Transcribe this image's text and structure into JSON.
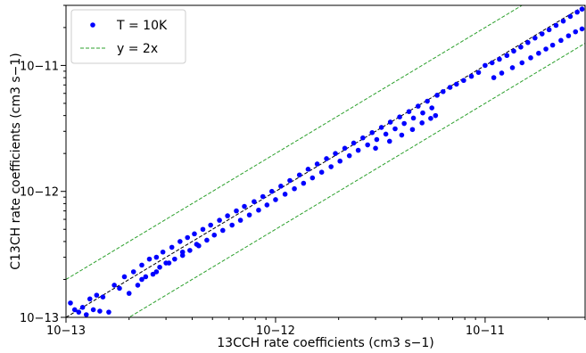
{
  "chart_data": {
    "type": "scatter",
    "xscale": "log",
    "yscale": "log",
    "xlim": [
      1e-13,
      3e-11
    ],
    "ylim": [
      1e-13,
      3e-11
    ],
    "xlabel": "13CCH rate coefficients (cm3 s−1)",
    "ylabel": "C13CH rate coefficients (cm3 s−1)",
    "xticks": [
      "10−13",
      "10−12",
      "10−11"
    ],
    "yticks": [
      "10−13",
      "10−12",
      "10−11"
    ],
    "legend_position": "upper-left",
    "series": [
      {
        "name": "T = 10K",
        "kind": "points",
        "color": "#0000ff",
        "points": [
          [
            1.05e-13,
            1.3e-13
          ],
          [
            1.1e-13,
            1.15e-13
          ],
          [
            1.15e-13,
            1.1e-13
          ],
          [
            1.2e-13,
            1.2e-13
          ],
          [
            1.25e-13,
            1.05e-13
          ],
          [
            1.3e-13,
            1.4e-13
          ],
          [
            1.35e-13,
            1.15e-13
          ],
          [
            1.4e-13,
            1.5e-13
          ],
          [
            1.45e-13,
            1.12e-13
          ],
          [
            1.5e-13,
            1.45e-13
          ],
          [
            1.6e-13,
            1.1e-13
          ],
          [
            1.7e-13,
            1.8e-13
          ],
          [
            1.8e-13,
            1.7e-13
          ],
          [
            1.9e-13,
            2.1e-13
          ],
          [
            2e-13,
            1.55e-13
          ],
          [
            2.1e-13,
            2.3e-13
          ],
          [
            2.2e-13,
            1.8e-13
          ],
          [
            2.3e-13,
            2.6e-13
          ],
          [
            2.4e-13,
            2.1e-13
          ],
          [
            2.5e-13,
            2.9e-13
          ],
          [
            2.6e-13,
            2.2e-13
          ],
          [
            2.7e-13,
            3e-13
          ],
          [
            2.8e-13,
            2.5e-13
          ],
          [
            2.9e-13,
            3.3e-13
          ],
          [
            3e-13,
            2.7e-13
          ],
          [
            3.2e-13,
            3.6e-13
          ],
          [
            3.3e-13,
            2.9e-13
          ],
          [
            3.5e-13,
            4e-13
          ],
          [
            3.6e-13,
            3.1e-13
          ],
          [
            3.8e-13,
            4.3e-13
          ],
          [
            3.9e-13,
            3.4e-13
          ],
          [
            4.1e-13,
            4.6e-13
          ],
          [
            4.3e-13,
            3.7e-13
          ],
          [
            4.5e-13,
            5e-13
          ],
          [
            4.7e-13,
            4.1e-13
          ],
          [
            4.9e-13,
            5.4e-13
          ],
          [
            5.1e-13,
            4.5e-13
          ],
          [
            5.4e-13,
            5.9e-13
          ],
          [
            5.6e-13,
            4.9e-13
          ],
          [
            5.9e-13,
            6.4e-13
          ],
          [
            6.2e-13,
            5.4e-13
          ],
          [
            6.5e-13,
            7e-13
          ],
          [
            6.8e-13,
            5.9e-13
          ],
          [
            7.1e-13,
            7.6e-13
          ],
          [
            7.5e-13,
            6.5e-13
          ],
          [
            7.9e-13,
            8.3e-13
          ],
          [
            8.3e-13,
            7.1e-13
          ],
          [
            8.7e-13,
            9.1e-13
          ],
          [
            9.1e-13,
            7.8e-13
          ],
          [
            9.6e-13,
            1e-12
          ],
          [
            1e-12,
            8.6e-13
          ],
          [
            1.06e-12,
            1.1e-12
          ],
          [
            1.11e-12,
            9.5e-13
          ],
          [
            1.17e-12,
            1.22e-12
          ],
          [
            1.23e-12,
            1.05e-12
          ],
          [
            1.3e-12,
            1.35e-12
          ],
          [
            1.36e-12,
            1.16e-12
          ],
          [
            1.43e-12,
            1.5e-12
          ],
          [
            1.5e-12,
            1.28e-12
          ],
          [
            1.58e-12,
            1.65e-12
          ],
          [
            1.66e-12,
            1.42e-12
          ],
          [
            1.75e-12,
            1.82e-12
          ],
          [
            1.84e-12,
            1.57e-12
          ],
          [
            1.93e-12,
            2e-12
          ],
          [
            2.03e-12,
            1.74e-12
          ],
          [
            2.14e-12,
            2.2e-12
          ],
          [
            2.25e-12,
            1.92e-12
          ],
          [
            2.36e-12,
            2.42e-12
          ],
          [
            2.48e-12,
            2.12e-12
          ],
          [
            2.61e-12,
            2.66e-12
          ],
          [
            2.75e-12,
            2.34e-12
          ],
          [
            2.89e-12,
            2.93e-12
          ],
          [
            3.04e-12,
            2.58e-12
          ],
          [
            3.2e-12,
            3.22e-12
          ],
          [
            3.36e-12,
            2.85e-12
          ],
          [
            3.53e-12,
            3.55e-12
          ],
          [
            3.72e-12,
            3.14e-12
          ],
          [
            3.91e-12,
            3.9e-12
          ],
          [
            4.11e-12,
            3.46e-12
          ],
          [
            4.33e-12,
            4.3e-12
          ],
          [
            4.55e-12,
            3.82e-12
          ],
          [
            4.79e-12,
            4.75e-12
          ],
          [
            5.04e-12,
            4.2e-12
          ],
          [
            5.3e-12,
            5.2e-12
          ],
          [
            5.57e-12,
            4.6e-12
          ],
          [
            5.9e-12,
            5.8e-12
          ],
          [
            6.3e-12,
            6.2e-12
          ],
          [
            6.8e-12,
            6.7e-12
          ],
          [
            7.3e-12,
            7.1e-12
          ],
          [
            7.9e-12,
            7.6e-12
          ],
          [
            8.6e-12,
            8.2e-12
          ],
          [
            9.3e-12,
            8.8e-12
          ],
          [
            1e-11,
            1e-11
          ],
          [
            1.08e-11,
            1.05e-11
          ],
          [
            1.17e-11,
            1.12e-11
          ],
          [
            1.27e-11,
            1.2e-11
          ],
          [
            1.37e-11,
            1.3e-11
          ],
          [
            1.48e-11,
            1.4e-11
          ],
          [
            1.6e-11,
            1.52e-11
          ],
          [
            1.73e-11,
            1.65e-11
          ],
          [
            1.87e-11,
            1.78e-11
          ],
          [
            2.02e-11,
            1.92e-11
          ],
          [
            2.18e-11,
            2.08e-11
          ],
          [
            2.36e-11,
            2.25e-11
          ],
          [
            2.55e-11,
            2.45e-11
          ],
          [
            2.75e-11,
            2.65e-11
          ],
          [
            2.9e-11,
            2.8e-11
          ],
          [
            1.1e-11,
            8e-12
          ],
          [
            1.2e-11,
            8.7e-12
          ],
          [
            1.35e-11,
            9.6e-12
          ],
          [
            1.5e-11,
            1.05e-11
          ],
          [
            1.65e-11,
            1.15e-11
          ],
          [
            1.8e-11,
            1.25e-11
          ],
          [
            1.95e-11,
            1.35e-11
          ],
          [
            2.1e-11,
            1.45e-11
          ],
          [
            2.3e-11,
            1.58e-11
          ],
          [
            2.5e-11,
            1.72e-11
          ],
          [
            2.7e-11,
            1.85e-11
          ],
          [
            2.9e-11,
            1.95e-11
          ],
          [
            3e-12,
            2.2e-12
          ],
          [
            3.5e-12,
            2.5e-12
          ],
          [
            4e-12,
            2.8e-12
          ],
          [
            4.5e-12,
            3.1e-12
          ],
          [
            5e-12,
            3.5e-12
          ],
          [
            5.5e-12,
            3.8e-12
          ],
          [
            5.8e-12,
            4e-12
          ],
          [
            2.3e-13,
            2e-13
          ],
          [
            2.7e-13,
            2.3e-13
          ],
          [
            3.1e-13,
            2.7e-13
          ],
          [
            3.6e-13,
            3.3e-13
          ],
          [
            4.2e-13,
            3.8e-13
          ]
        ]
      },
      {
        "name": "y = 1x",
        "kind": "line",
        "color": "#000000",
        "style": "dashed",
        "factor": 1,
        "show_in_legend": false
      },
      {
        "name": "y = 2x",
        "kind": "line",
        "color": "#2ca02c",
        "style": "dashed",
        "factor": 2,
        "show_in_legend": true
      },
      {
        "name": "y = 0.5x",
        "kind": "line",
        "color": "#2ca02c",
        "style": "dashed",
        "factor": 0.5,
        "show_in_legend": false
      }
    ],
    "legend": [
      {
        "label": "T = 10K",
        "kind": "marker",
        "color": "#0000ff"
      },
      {
        "label": "y = 2x",
        "kind": "line",
        "color": "#2ca02c",
        "style": "dashed"
      }
    ]
  }
}
